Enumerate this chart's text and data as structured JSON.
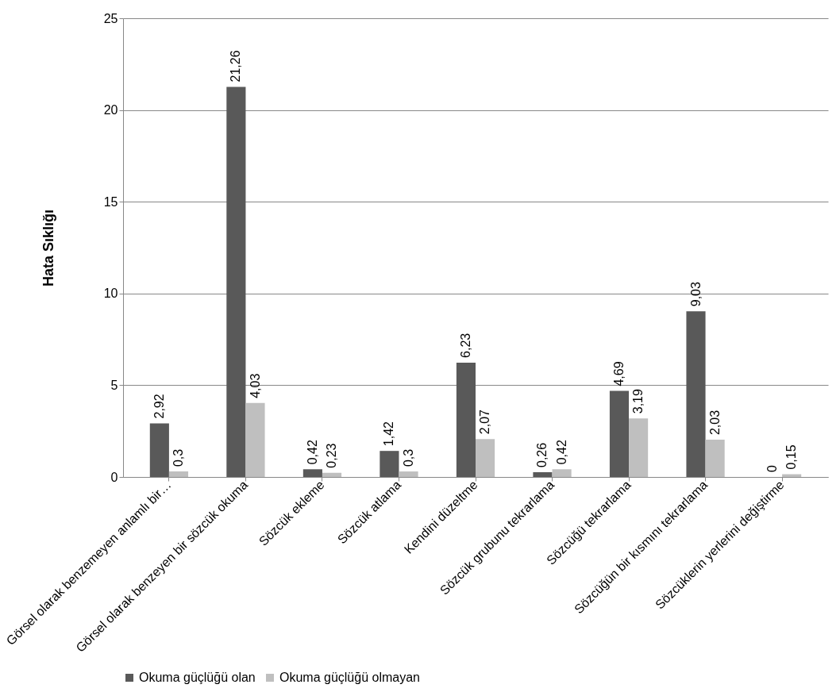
{
  "chart_data": {
    "type": "bar",
    "ylabel": "Hata Sıklığı",
    "categories": [
      "Görsel olarak benzemeyen anlamlı bir…",
      "Görsel olarak benzeyen  bir sözcük okuma",
      "Sözcük ekleme",
      "Sözcük atlama",
      "Kendini düzeltme",
      "Sözcük grubunu tekrarlama",
      "Sözcüğü tekrarlama",
      "Sözcüğün bir kısmını tekrarlama",
      "Sözcüklerin yerlerini değiştirme"
    ],
    "series": [
      {
        "name": "Okuma güçlüğü olan",
        "color": "#595959",
        "values": [
          2.92,
          21.26,
          0.42,
          1.42,
          6.23,
          0.26,
          4.69,
          9.03,
          0
        ],
        "value_labels": [
          "2,92",
          "21,26",
          "0,42",
          "1,42",
          "6,23",
          "0,26",
          "4,69",
          "9,03",
          "0"
        ]
      },
      {
        "name": "Okuma güçlüğü olmayan",
        "color": "#bfbfbf",
        "values": [
          0.3,
          4.03,
          0.23,
          0.3,
          2.07,
          0.42,
          3.19,
          2.03,
          0.15
        ],
        "value_labels": [
          "0,3",
          "4,03",
          "0,23",
          "0,3",
          "2,07",
          "0,42",
          "3,19",
          "2,03",
          "0,15"
        ]
      }
    ],
    "ylim": [
      0,
      25
    ],
    "yticks": [
      0,
      5,
      10,
      15,
      20,
      25
    ],
    "grid": "y",
    "legend": "bottom"
  }
}
